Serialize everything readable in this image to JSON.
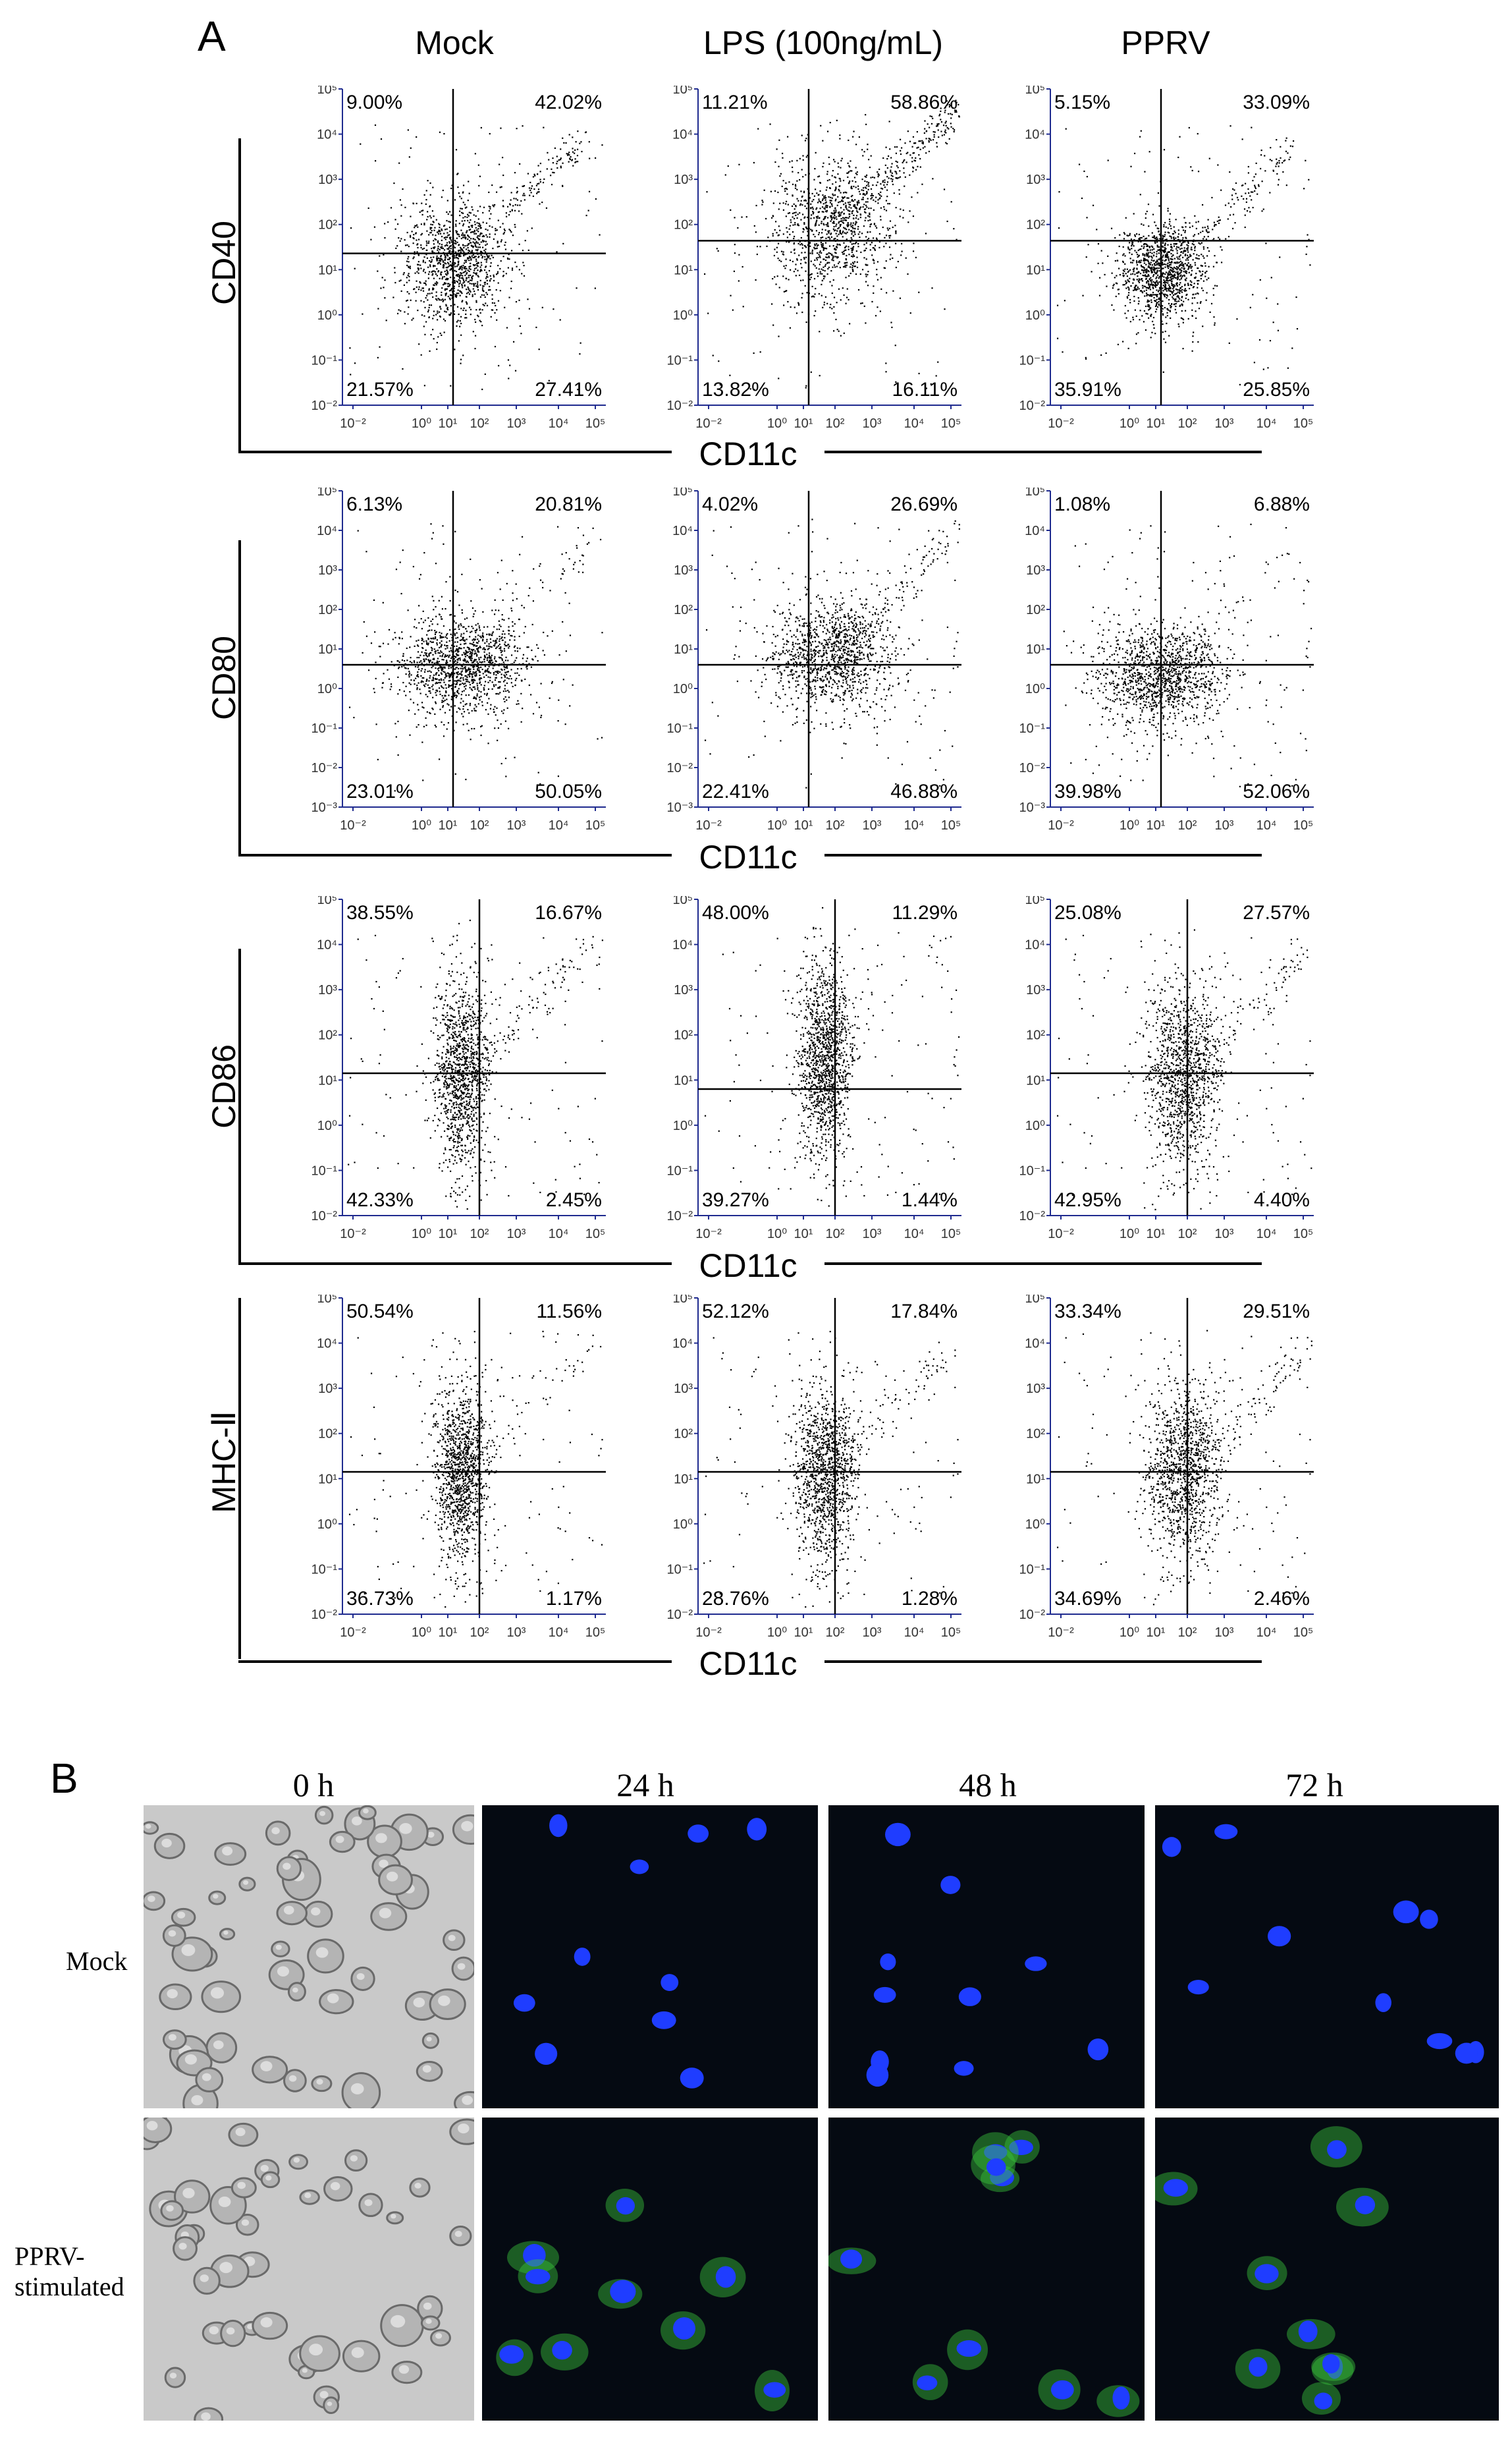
{
  "panel_a": {
    "letter": "A",
    "columns": [
      "Mock",
      "LPS (100ng/mL)",
      "PPRV"
    ],
    "x_label": "CD11c",
    "rows": [
      {
        "marker": "CD40",
        "quadrants": [
          [
            "9.00%",
            "42.02%",
            "21.57%",
            "27.41%"
          ],
          [
            "11.21%",
            "58.86%",
            "13.82%",
            "16.11%"
          ],
          [
            "5.15%",
            "33.09%",
            "35.91%",
            "25.85%"
          ]
        ]
      },
      {
        "marker": "CD80",
        "quadrants": [
          [
            "6.13%",
            "20.81%",
            "23.01%",
            "50.05%"
          ],
          [
            "4.02%",
            "26.69%",
            "22.41%",
            "46.88%"
          ],
          [
            "1.08%",
            "6.88%",
            "39.98%",
            "52.06%"
          ]
        ]
      },
      {
        "marker": "CD86",
        "quadrants": [
          [
            "38.55%",
            "16.67%",
            "42.33%",
            "2.45%"
          ],
          [
            "48.00%",
            "11.29%",
            "39.27%",
            "1.44%"
          ],
          [
            "25.08%",
            "27.57%",
            "42.95%",
            "4.40%"
          ]
        ]
      },
      {
        "marker": "MHC-Ⅱ",
        "quadrants": [
          [
            "50.54%",
            "11.56%",
            "36.73%",
            "1.17%"
          ],
          [
            "52.12%",
            "17.84%",
            "28.76%",
            "1.28%"
          ],
          [
            "33.34%",
            "29.51%",
            "34.69%",
            "2.46%"
          ]
        ]
      }
    ],
    "ticks": {
      "x": [
        "10⁻²",
        "10⁰",
        "10¹",
        "10²",
        "10³",
        "10⁴",
        "10⁵"
      ],
      "y_cd40": [
        "10⁵",
        "10⁴",
        "10³",
        "10²",
        "10¹",
        "10⁰",
        "10⁻¹",
        "10⁻²"
      ],
      "y_cd80": [
        "10⁵",
        "10⁴",
        "10³",
        "10²",
        "10¹",
        "10⁰",
        "10⁻¹",
        "10⁻²",
        "10⁻³"
      ],
      "y_cd86": [
        "10⁵",
        "10⁴",
        "10³",
        "10²",
        "10¹",
        "10⁰",
        "10⁻¹",
        "10⁻²"
      ],
      "y_mhc": [
        "10⁵",
        "10⁴",
        "10³",
        "10²",
        "10¹",
        "10⁰",
        "10⁻¹",
        "10⁻²"
      ]
    }
  },
  "panel_b": {
    "letter": "B",
    "times": [
      "0 h",
      "24 h",
      "48 h",
      "72 h"
    ],
    "row_labels": [
      "Mock",
      "PPRV-\nstimulated"
    ]
  },
  "colors": {
    "dot": "#000000",
    "tick": "#1f2b8f",
    "nucleus": "#1f3dff",
    "gfp": "#39c43c",
    "dark_bg": "#050a12",
    "bright_bg": "#c9c9c9"
  }
}
